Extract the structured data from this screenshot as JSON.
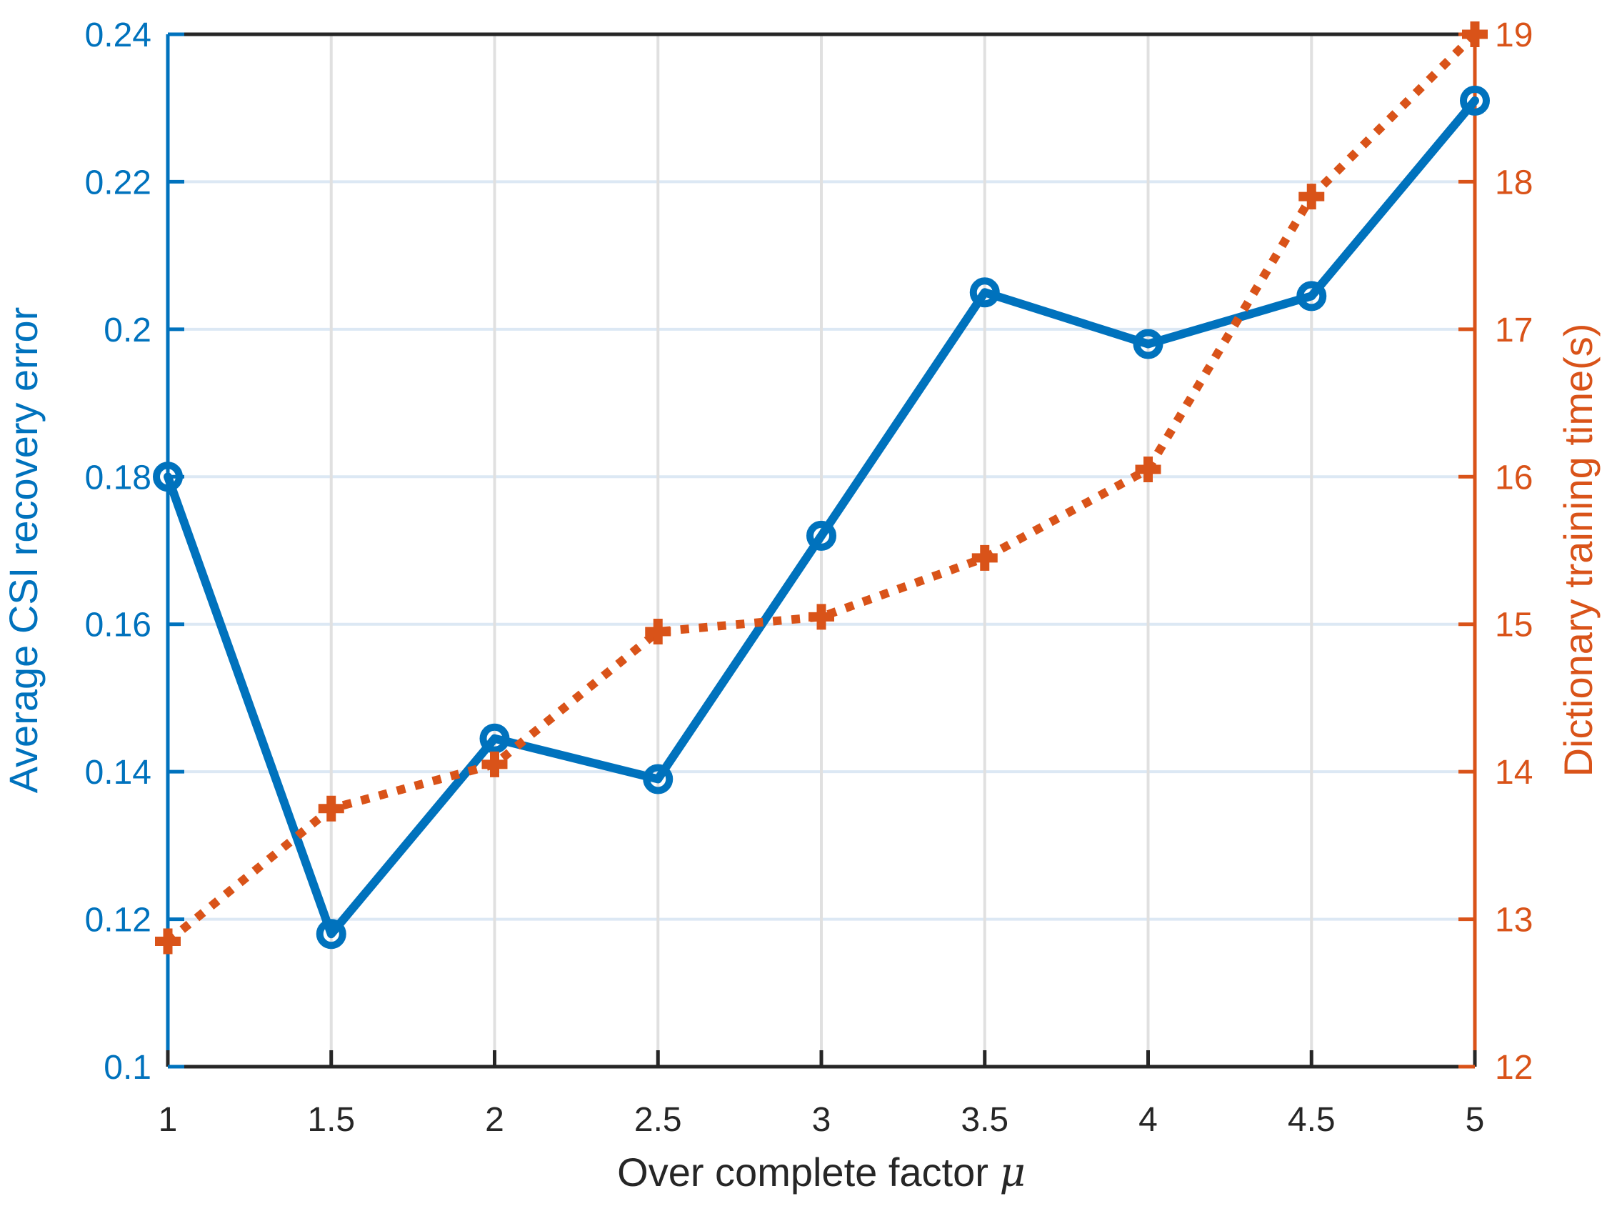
{
  "figure": {
    "xlabel_text": "Over complete factor ",
    "xlabel_symbol": "μ",
    "ylabel_left": "Average CSI recovery error",
    "ylabel_right": "Dictionary training time(s)"
  },
  "chart_data": {
    "type": "line",
    "title": "",
    "xlabel": "Over complete factor μ",
    "ylabel_left": "Average CSI recovery error",
    "ylabel_right": "Dictionary training time(s)",
    "x": [
      1,
      1.5,
      2,
      2.5,
      3,
      3.5,
      4,
      4.5,
      5
    ],
    "series": [
      {
        "name": "Average CSI recovery error",
        "axis": "left",
        "color": "#0072BD",
        "line_style": "solid",
        "marker": "circle",
        "values": [
          0.18,
          0.118,
          0.1445,
          0.139,
          0.172,
          0.205,
          0.198,
          0.2045,
          0.231
        ]
      },
      {
        "name": "Dictionary training time(s)",
        "axis": "right",
        "color": "#D95319",
        "line_style": "dotted",
        "marker": "plus",
        "values": [
          12.85,
          13.75,
          14.05,
          14.95,
          15.05,
          15.45,
          16.05,
          17.9,
          19.0
        ]
      }
    ],
    "xlim": [
      1,
      5
    ],
    "ylim_left": [
      0.1,
      0.24
    ],
    "ylim_right": [
      12,
      19
    ],
    "x_ticks": [
      1,
      1.5,
      2,
      2.5,
      3,
      3.5,
      4,
      4.5,
      5
    ],
    "x_tick_labels": [
      "1",
      "1.5",
      "2",
      "2.5",
      "3",
      "3.5",
      "4",
      "4.5",
      "5"
    ],
    "left_ticks": [
      0.1,
      0.12,
      0.14,
      0.16,
      0.18,
      0.2,
      0.22,
      0.24
    ],
    "left_tick_labels": [
      "0.1",
      "0.12",
      "0.14",
      "0.16",
      "0.18",
      "0.2",
      "0.22",
      "0.24"
    ],
    "right_ticks": [
      12,
      13,
      14,
      15,
      16,
      17,
      18,
      19
    ],
    "right_tick_labels": [
      "12",
      "13",
      "14",
      "15",
      "16",
      "17",
      "18",
      "19"
    ],
    "grid": true,
    "legend": "none",
    "colors": {
      "left_axis": "#0072BD",
      "right_axis": "#D95319",
      "h_grid": "#DCE8F4",
      "v_grid": "#E0E0E0",
      "axis_dark": "#262626",
      "background": "#FFFFFF"
    }
  }
}
